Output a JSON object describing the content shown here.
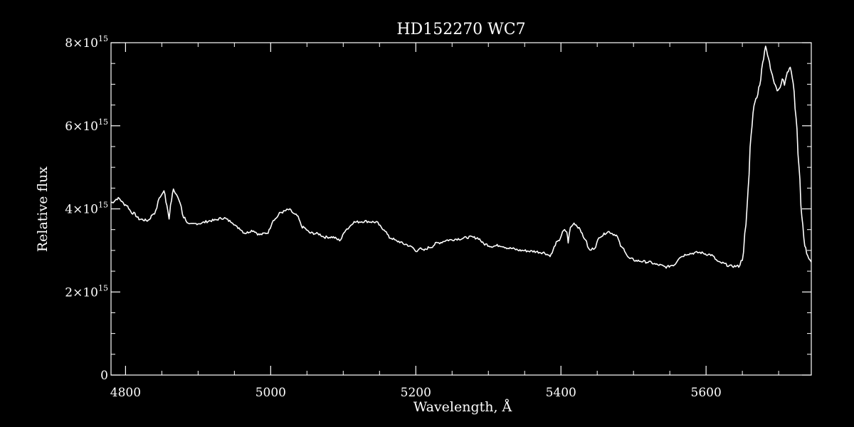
{
  "chart_data": {
    "type": "line",
    "title": "HD152270  WC7",
    "xlabel": "Wavelength, Å",
    "ylabel": "Relative flux",
    "xlim": [
      4780,
      5745
    ],
    "ylim": [
      0,
      8000000000000000.0
    ],
    "x_ticks": [
      4800,
      5000,
      5200,
      5400,
      5600
    ],
    "x_tick_labels": [
      "4800",
      "5000",
      "5200",
      "5400",
      "5600"
    ],
    "y_ticks": [
      0,
      2000000000000000.0,
      4000000000000000.0,
      6000000000000000.0,
      8000000000000000.0
    ],
    "y_tick_labels": [
      {
        "mantissa": "0",
        "exponent": ""
      },
      {
        "mantissa": "2×10",
        "exponent": "15"
      },
      {
        "mantissa": "4×10",
        "exponent": "15"
      },
      {
        "mantissa": "6×10",
        "exponent": "15"
      },
      {
        "mantissa": "8×10",
        "exponent": "15"
      }
    ],
    "grid": false,
    "colors": {
      "background": "#000000",
      "line": "#ffffff",
      "axes": "#ffffff"
    },
    "series": [
      {
        "x": [
          4780,
          4790,
          4800,
          4810,
          4820,
          4830,
          4840,
          4848,
          4853,
          4857,
          4860,
          4862,
          4866,
          4870,
          4875,
          4880,
          4888,
          4900,
          4920,
          4935,
          4945,
          4955,
          4965,
          4975,
          4985,
          4995,
          5005,
          5015,
          5025,
          5035,
          5045,
          5055,
          5065,
          5075,
          5085,
          5095,
          5105,
          5115,
          5130,
          5145,
          5155,
          5165,
          5175,
          5185,
          5195,
          5200,
          5205,
          5210,
          5220,
          5230,
          5245,
          5260,
          5275,
          5285,
          5295,
          5305,
          5315,
          5330,
          5345,
          5360,
          5375,
          5385,
          5395,
          5405,
          5408,
          5410,
          5413,
          5418,
          5425,
          5432,
          5440,
          5445,
          5455,
          5465,
          5475,
          5485,
          5495,
          5505,
          5520,
          5535,
          5545,
          5555,
          5565,
          5575,
          5590,
          5605,
          5620,
          5635,
          5645,
          5650,
          5655,
          5658,
          5662,
          5666,
          5670,
          5674,
          5678,
          5682,
          5686,
          5690,
          5694,
          5698,
          5702,
          5705,
          5708,
          5712,
          5716,
          5720,
          5724,
          5728,
          5732,
          5736,
          5740,
          5745
        ],
        "y": [
          4150000000000000.0,
          4250000000000000.0,
          4100000000000000.0,
          3900000000000000.0,
          3750000000000000.0,
          3720000000000000.0,
          3900000000000000.0,
          4300000000000000.0,
          4420000000000000.0,
          4100000000000000.0,
          3780000000000000.0,
          4100000000000000.0,
          4450000000000000.0,
          4350000000000000.0,
          4150000000000000.0,
          3800000000000000.0,
          3620000000000000.0,
          3650000000000000.0,
          3720000000000000.0,
          3780000000000000.0,
          3700000000000000.0,
          3550000000000000.0,
          3420000000000000.0,
          3480000000000000.0,
          3380000000000000.0,
          3420000000000000.0,
          3750000000000000.0,
          3920000000000000.0,
          3980000000000000.0,
          3850000000000000.0,
          3550000000000000.0,
          3420000000000000.0,
          3400000000000000.0,
          3320000000000000.0,
          3320000000000000.0,
          3250000000000000.0,
          3520000000000000.0,
          3680000000000000.0,
          3700000000000000.0,
          3680000000000000.0,
          3520000000000000.0,
          3300000000000000.0,
          3220000000000000.0,
          3150000000000000.0,
          3080000000000000.0,
          2980000000000000.0,
          3050000000000000.0,
          3000000000000000.0,
          3080000000000000.0,
          3180000000000000.0,
          3250000000000000.0,
          3280000000000000.0,
          3320000000000000.0,
          3300000000000000.0,
          3150000000000000.0,
          3100000000000000.0,
          3120000000000000.0,
          3050000000000000.0,
          3000000000000000.0,
          2980000000000000.0,
          2950000000000000.0,
          2880000000000000.0,
          3200000000000000.0,
          3480000000000000.0,
          3450000000000000.0,
          3200000000000000.0,
          3550000000000000.0,
          3650000000000000.0,
          3550000000000000.0,
          3300000000000000.0,
          3000000000000000.0,
          3050000000000000.0,
          3350000000000000.0,
          3450000000000000.0,
          3380000000000000.0,
          3050000000000000.0,
          2800000000000000.0,
          2750000000000000.0,
          2720000000000000.0,
          2650000000000000.0,
          2600000000000000.0,
          2650000000000000.0,
          2850000000000000.0,
          2920000000000000.0,
          2950000000000000.0,
          2900000000000000.0,
          2700000000000000.0,
          2620000000000000.0,
          2620000000000000.0,
          2780000000000000.0,
          3600000000000000.0,
          4500000000000000.0,
          5800000000000000.0,
          6500000000000000.0,
          6700000000000000.0,
          7000000000000000.0,
          7500000000000000.0,
          7900000000000000.0,
          7650000000000000.0,
          7300000000000000.0,
          7050000000000000.0,
          6850000000000000.0,
          6900000000000000.0,
          7150000000000000.0,
          7000000000000000.0,
          7300000000000000.0,
          7400000000000000.0,
          7050000000000000.0,
          6200000000000000.0,
          5000000000000000.0,
          3800000000000000.0,
          3100000000000000.0,
          2850000000000000.0,
          2720000000000000.0
        ]
      }
    ]
  }
}
